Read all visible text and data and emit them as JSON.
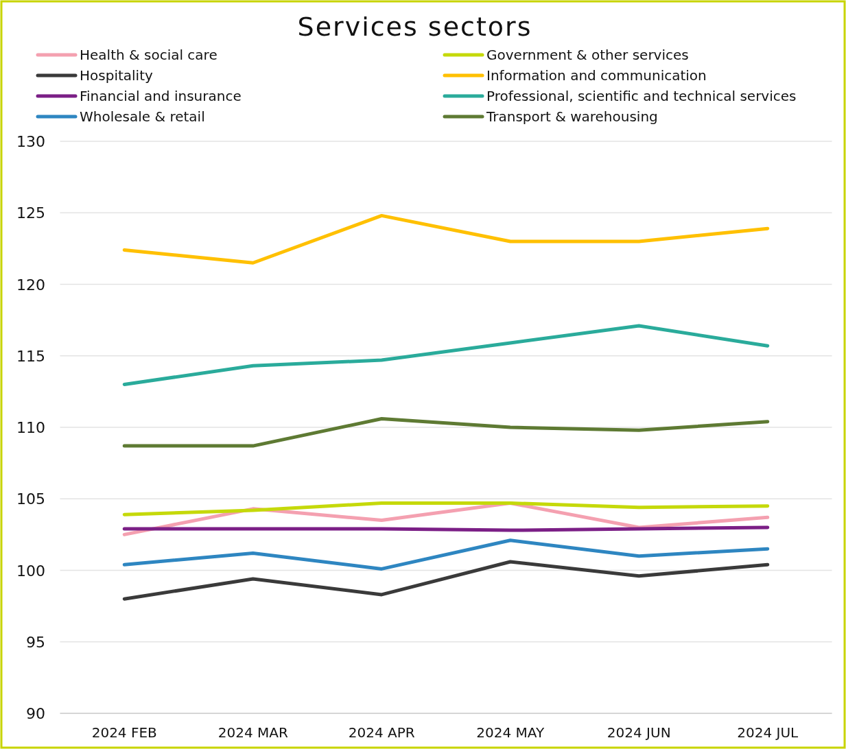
{
  "chart_data": {
    "type": "line",
    "title": "Services sectors",
    "categories": [
      "2024 FEB",
      "2024 MAR",
      "2024 APR",
      "2024 MAY",
      "2024 JUN",
      "2024 JUL"
    ],
    "series": [
      {
        "name": "Health & social care",
        "color": "#f4a0b0",
        "values": [
          102.5,
          104.3,
          103.5,
          104.7,
          103.0,
          103.7
        ]
      },
      {
        "name": "Hospitality",
        "color": "#3a3a3a",
        "values": [
          98.0,
          99.4,
          98.3,
          100.6,
          99.6,
          100.4
        ]
      },
      {
        "name": "Financial and insurance",
        "color": "#7b1f86",
        "values": [
          102.9,
          102.9,
          102.9,
          102.8,
          102.9,
          103.0
        ]
      },
      {
        "name": "Wholesale & retail",
        "color": "#2e86c1",
        "values": [
          100.4,
          101.2,
          100.1,
          102.1,
          101.0,
          101.5
        ]
      },
      {
        "name": "Government & other services",
        "color": "#c5d90a",
        "values": [
          103.9,
          104.2,
          104.7,
          104.7,
          104.4,
          104.5
        ]
      },
      {
        "name": "Information and communication",
        "color": "#ffc000",
        "values": [
          122.4,
          121.5,
          124.8,
          123.0,
          123.0,
          123.9
        ]
      },
      {
        "name": "Professional, scientific and technical services",
        "color": "#2aab9b",
        "values": [
          113.0,
          114.3,
          114.7,
          115.9,
          117.1,
          115.7
        ]
      },
      {
        "name": "Transport & warehousing",
        "color": "#5e7a33",
        "values": [
          108.7,
          108.7,
          110.6,
          110.0,
          109.8,
          110.4
        ]
      }
    ],
    "ylim": [
      90,
      130
    ],
    "yticks": [
      90,
      95,
      100,
      105,
      110,
      115,
      120,
      125,
      130
    ],
    "grid": "y",
    "legend": "top",
    "marker": "none",
    "line_style": "solid"
  }
}
